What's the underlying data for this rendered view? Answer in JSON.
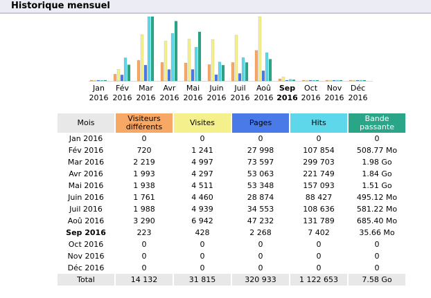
{
  "page": {
    "title": "Historique mensuel"
  },
  "colors": {
    "visitors": "#f7a865",
    "visits": "#f4f08c",
    "pages": "#4a7ae8",
    "hits": "#5ed7ea",
    "bandwidth": "#2aa587",
    "header_gray": "#e8e8e8"
  },
  "chart_data": {
    "type": "bar",
    "categories": [
      [
        "Jan",
        "2016"
      ],
      [
        "Fév",
        "2016"
      ],
      [
        "Mar",
        "2016"
      ],
      [
        "Avr",
        "2016"
      ],
      [
        "Mai",
        "2016"
      ],
      [
        "Juin",
        "2016"
      ],
      [
        "Juil",
        "2016"
      ],
      [
        "Aoû",
        "2016"
      ],
      [
        "Sep",
        "2016"
      ],
      [
        "Oct",
        "2016"
      ],
      [
        "Nov",
        "2016"
      ],
      [
        "Déc",
        "2016"
      ]
    ],
    "highlighted_category": "Sep",
    "series": [
      {
        "name": "Visiteurs différents",
        "color": "#f7a865",
        "values": [
          0,
          720,
          2219,
          1993,
          1938,
          1761,
          1988,
          3290,
          223,
          0,
          0,
          0
        ]
      },
      {
        "name": "Visites",
        "color": "#f4f08c",
        "values": [
          0,
          1241,
          4997,
          4297,
          4511,
          4460,
          4939,
          6942,
          428,
          0,
          0,
          0
        ]
      },
      {
        "name": "Pages",
        "color": "#4a7ae8",
        "values": [
          0,
          27998,
          73597,
          53063,
          53348,
          28874,
          34553,
          47232,
          2268,
          0,
          0,
          0
        ]
      },
      {
        "name": "Hits",
        "color": "#5ed7ea",
        "values": [
          0,
          107854,
          299703,
          221749,
          157093,
          88427,
          108636,
          131789,
          7402,
          0,
          0,
          0
        ]
      },
      {
        "name": "Bande passante",
        "color": "#2aa587",
        "values": [
          0,
          508.77,
          2027.52,
          1884.16,
          1546.24,
          495.12,
          581.22,
          685.4,
          35.66,
          0,
          0,
          0
        ]
      }
    ],
    "scale_groups": [
      [
        "Visiteurs différents",
        "Visites"
      ],
      [
        "Pages",
        "Hits"
      ],
      [
        "Bande passante"
      ]
    ]
  },
  "table": {
    "headers": {
      "month": "Mois",
      "visitors": [
        "Visiteurs",
        "différents"
      ],
      "visits": "Visites",
      "pages": "Pages",
      "hits": "Hits",
      "bandwidth": [
        "Bande",
        "passante"
      ]
    },
    "rows": [
      {
        "month": "Jan 2016",
        "visitors": "0",
        "visits": "0",
        "pages": "0",
        "hits": "0",
        "bandwidth": "0"
      },
      {
        "month": "Fév 2016",
        "visitors": "720",
        "visits": "1 241",
        "pages": "27 998",
        "hits": "107 854",
        "bandwidth": "508.77 Mo"
      },
      {
        "month": "Mar 2016",
        "visitors": "2 219",
        "visits": "4 997",
        "pages": "73 597",
        "hits": "299 703",
        "bandwidth": "1.98 Go"
      },
      {
        "month": "Avr 2016",
        "visitors": "1 993",
        "visits": "4 297",
        "pages": "53 063",
        "hits": "221 749",
        "bandwidth": "1.84 Go"
      },
      {
        "month": "Mai 2016",
        "visitors": "1 938",
        "visits": "4 511",
        "pages": "53 348",
        "hits": "157 093",
        "bandwidth": "1.51 Go"
      },
      {
        "month": "Juin 2016",
        "visitors": "1 761",
        "visits": "4 460",
        "pages": "28 874",
        "hits": "88 427",
        "bandwidth": "495.12 Mo"
      },
      {
        "month": "Juil 2016",
        "visitors": "1 988",
        "visits": "4 939",
        "pages": "34 553",
        "hits": "108 636",
        "bandwidth": "581.22 Mo"
      },
      {
        "month": "Aoû 2016",
        "visitors": "3 290",
        "visits": "6 942",
        "pages": "47 232",
        "hits": "131 789",
        "bandwidth": "685.40 Mo"
      },
      {
        "month": "Sep 2016",
        "visitors": "223",
        "visits": "428",
        "pages": "2 268",
        "hits": "7 402",
        "bandwidth": "35.66 Mo",
        "current": true
      },
      {
        "month": "Oct 2016",
        "visitors": "0",
        "visits": "0",
        "pages": "0",
        "hits": "0",
        "bandwidth": "0"
      },
      {
        "month": "Nov 2016",
        "visitors": "0",
        "visits": "0",
        "pages": "0",
        "hits": "0",
        "bandwidth": "0"
      },
      {
        "month": "Déc 2016",
        "visitors": "0",
        "visits": "0",
        "pages": "0",
        "hits": "0",
        "bandwidth": "0"
      }
    ],
    "total": {
      "month": "Total",
      "visitors": "14 132",
      "visits": "31 815",
      "pages": "320 933",
      "hits": "1 122 653",
      "bandwidth": "7.58 Go"
    }
  }
}
